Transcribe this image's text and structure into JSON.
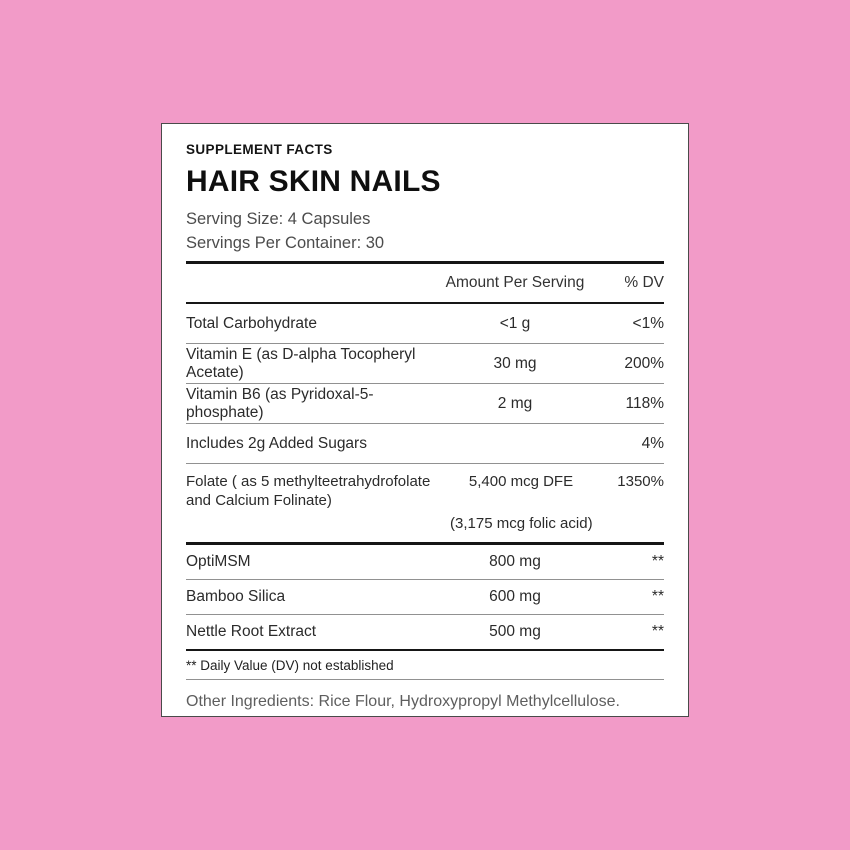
{
  "page": {
    "background_color": "#F29BC8",
    "card_background": "#FFFFFF",
    "card_border_color": "#4A4A4A",
    "thick_rule_color": "#161616",
    "thin_rule_color": "#919191"
  },
  "header": {
    "kicker": "SUPPLEMENT FACTS",
    "title": "HAIR SKIN NAILS",
    "serving_size": "Serving Size: 4 Capsules",
    "servings_per_container": "Servings Per Container: 30"
  },
  "table": {
    "columns": {
      "amount": "Amount Per Serving",
      "dv": "% DV"
    },
    "rows": [
      {
        "name": "Total Carbohydrate",
        "amount": "<1 g",
        "dv": "<1%"
      },
      {
        "name": "Vitamin E (as D-alpha Tocopheryl Acetate)",
        "amount": "30 mg",
        "dv": "200%"
      },
      {
        "name": "Vitamin B6 (as Pyridoxal-5-phosphate)",
        "amount": "2 mg",
        "dv": "118%"
      },
      {
        "name": "Includes 2g Added Sugars",
        "amount": "",
        "dv": "4%"
      },
      {
        "name": "Folate ( as 5 methylteetrahydrofolate and Calcium Folinate)",
        "amount": "5,400 mcg DFE",
        "dv": "1350%",
        "sub_amount": "(3,175 mcg folic acid)"
      }
    ],
    "rows_no_dv": [
      {
        "name": "OptiMSM",
        "amount": "800 mg",
        "dv": "**"
      },
      {
        "name": "Bamboo Silica",
        "amount": "600 mg",
        "dv": "**"
      },
      {
        "name": "Nettle Root Extract",
        "amount": "500 mg",
        "dv": "**"
      }
    ]
  },
  "footnote": "** Daily Value (DV) not established",
  "other_ingredients": "Other Ingredients: Rice Flour, Hydroxypropyl Methylcellulose."
}
